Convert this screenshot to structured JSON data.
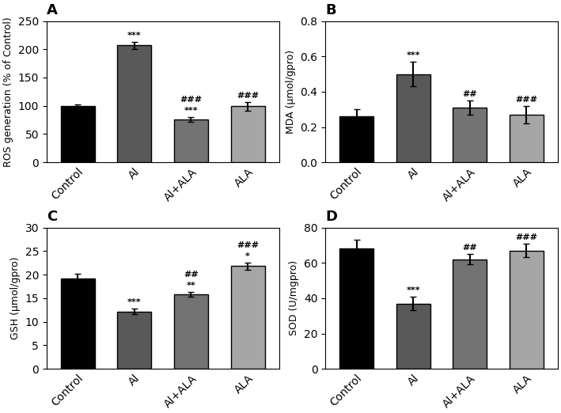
{
  "chart_data": [
    {
      "type": "bar",
      "title": "A",
      "ylabel": "ROS generation (% of Control)",
      "categories": [
        "Control",
        "Al",
        "Al+ALA",
        "ALA"
      ],
      "values": [
        100,
        207,
        76,
        99
      ],
      "errors": [
        3,
        6,
        4,
        8
      ],
      "colors": [
        "#000000",
        "#595959",
        "#737373",
        "#a6a6a6"
      ],
      "ylim": [
        0,
        250
      ],
      "yticks": [
        0,
        50,
        100,
        150,
        200,
        250
      ],
      "annotations": [
        [],
        [
          "***"
        ],
        [
          "***",
          "###"
        ],
        [
          "###"
        ]
      ]
    },
    {
      "type": "bar",
      "title": "B",
      "ylabel": "MDA (μmol/gpro)",
      "categories": [
        "Control",
        "Al",
        "Al+ALA",
        "ALA"
      ],
      "values": [
        0.26,
        0.5,
        0.31,
        0.27
      ],
      "errors": [
        0.04,
        0.07,
        0.04,
        0.05
      ],
      "colors": [
        "#000000",
        "#595959",
        "#737373",
        "#a6a6a6"
      ],
      "ylim": [
        0.0,
        0.8
      ],
      "yticks": [
        0.0,
        0.2,
        0.4,
        0.6,
        0.8
      ],
      "annotations": [
        [],
        [
          "***"
        ],
        [
          "##"
        ],
        [
          "###"
        ]
      ]
    },
    {
      "type": "bar",
      "title": "C",
      "ylabel": "GSH (μmol/gpro)",
      "categories": [
        "Control",
        "Al",
        "Al+ALA",
        "ALA"
      ],
      "values": [
        19.2,
        12.2,
        15.8,
        21.8
      ],
      "errors": [
        1.0,
        0.6,
        0.5,
        0.8
      ],
      "colors": [
        "#000000",
        "#595959",
        "#737373",
        "#a6a6a6"
      ],
      "ylim": [
        0,
        30
      ],
      "yticks": [
        0,
        5,
        10,
        15,
        20,
        25,
        30
      ],
      "annotations": [
        [],
        [
          "***"
        ],
        [
          "**",
          "##"
        ],
        [
          "*",
          "###"
        ]
      ]
    },
    {
      "type": "bar",
      "title": "D",
      "ylabel": "SOD (U/mgpro)",
      "categories": [
        "Control",
        "Al",
        "Al+ALA",
        "ALA"
      ],
      "values": [
        68,
        37,
        62,
        67
      ],
      "errors": [
        5,
        4,
        3,
        4
      ],
      "colors": [
        "#000000",
        "#595959",
        "#737373",
        "#a6a6a6"
      ],
      "ylim": [
        0,
        80
      ],
      "yticks": [
        0,
        20,
        40,
        60,
        80
      ],
      "annotations": [
        [],
        [
          "***"
        ],
        [
          "##"
        ],
        [
          "###"
        ]
      ]
    }
  ]
}
